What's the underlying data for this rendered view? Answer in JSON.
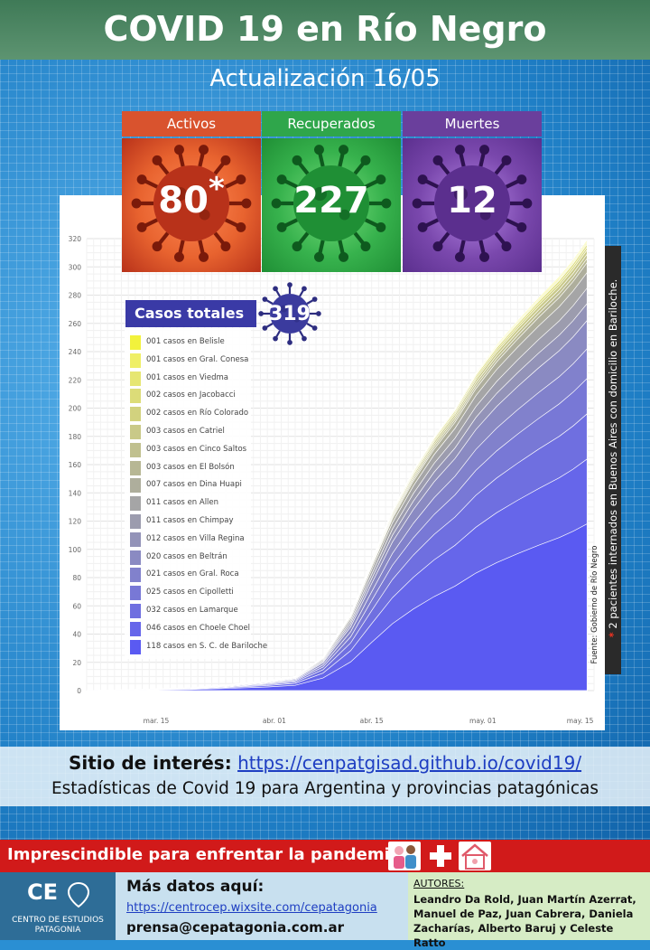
{
  "header": {
    "title": "COVID 19 en Río Negro",
    "subtitle": "Actualización  16/05"
  },
  "stats": [
    {
      "label": "Activos",
      "value": "80",
      "marker": "*",
      "color_header": "#d9532e",
      "color_box": "#e8632f",
      "icon": "virus-icon"
    },
    {
      "label": "Recuperados",
      "value": "227",
      "marker": "",
      "color_header": "#2fa64b",
      "color_box": "#37b24d",
      "icon": "virus-icon"
    },
    {
      "label": "Muertes",
      "value": "12",
      "marker": "",
      "color_header": "#6a3f9c",
      "color_box": "#7a48ad",
      "icon": "virus-icon"
    }
  ],
  "casos_totales": {
    "label": "Casos totales",
    "value": "319"
  },
  "chart_data": {
    "type": "area",
    "x_labels": [
      "mar. 15",
      "abr. 01",
      "abr. 15",
      "may. 01",
      "may. 15"
    ],
    "x_dates": [
      "2020-03-15",
      "2020-04-01",
      "2020-04-15",
      "2020-05-01",
      "2020-05-15"
    ],
    "ylim": [
      0,
      320
    ],
    "y_ticks": [
      0,
      20,
      40,
      60,
      80,
      100,
      120,
      140,
      160,
      180,
      200,
      220,
      240,
      260,
      280,
      300,
      320
    ],
    "grid": true,
    "total_curve": [
      {
        "date": "2020-03-05",
        "value": 0
      },
      {
        "date": "2020-03-14",
        "value": 1
      },
      {
        "date": "2020-03-20",
        "value": 2
      },
      {
        "date": "2020-03-25",
        "value": 4
      },
      {
        "date": "2020-03-31",
        "value": 7
      },
      {
        "date": "2020-04-04",
        "value": 10
      },
      {
        "date": "2020-04-08",
        "value": 24
      },
      {
        "date": "2020-04-12",
        "value": 55
      },
      {
        "date": "2020-04-15",
        "value": 92
      },
      {
        "date": "2020-04-18",
        "value": 128
      },
      {
        "date": "2020-04-21",
        "value": 156
      },
      {
        "date": "2020-04-24",
        "value": 180
      },
      {
        "date": "2020-04-27",
        "value": 200
      },
      {
        "date": "2020-04-30",
        "value": 225
      },
      {
        "date": "2020-05-03",
        "value": 245
      },
      {
        "date": "2020-05-06",
        "value": 262
      },
      {
        "date": "2020-05-09",
        "value": 278
      },
      {
        "date": "2020-05-12",
        "value": 293
      },
      {
        "date": "2020-05-14",
        "value": 305
      },
      {
        "date": "2020-05-16",
        "value": 319
      }
    ],
    "series": [
      {
        "name": "001 casos en Belisle",
        "value": 1,
        "color": "#f2f23c"
      },
      {
        "name": "001 casos en Gral. Conesa",
        "value": 1,
        "color": "#efef66"
      },
      {
        "name": "001 casos en Viedma",
        "value": 1,
        "color": "#e6e672"
      },
      {
        "name": "002 casos en Jacobacci",
        "value": 2,
        "color": "#dcdc78"
      },
      {
        "name": "002 casos en Río Colorado",
        "value": 2,
        "color": "#d2d27e"
      },
      {
        "name": "003 casos en Catriel",
        "value": 3,
        "color": "#c9c988"
      },
      {
        "name": "003 casos en Cinco Saltos",
        "value": 3,
        "color": "#c0c08e"
      },
      {
        "name": "003 casos en El Bolsón",
        "value": 3,
        "color": "#b7b794"
      },
      {
        "name": "007 casos en Dina Huapi",
        "value": 7,
        "color": "#aeae9c"
      },
      {
        "name": "011 casos en Allen",
        "value": 11,
        "color": "#a5a5a6"
      },
      {
        "name": "011 casos en Chimpay",
        "value": 11,
        "color": "#9c9cae"
      },
      {
        "name": "012 casos en Villa Regina",
        "value": 12,
        "color": "#9393b8"
      },
      {
        "name": "020 casos en Beltrán",
        "value": 20,
        "color": "#8a8ac2"
      },
      {
        "name": "021 casos en Gral. Roca",
        "value": 21,
        "color": "#8181cc"
      },
      {
        "name": "025 casos en Cipolletti",
        "value": 25,
        "color": "#7878d6"
      },
      {
        "name": "032 casos en Lamarque",
        "value": 32,
        "color": "#6f6fe0"
      },
      {
        "name": "046 casos en Choele Choel",
        "value": 46,
        "color": "#6666ea"
      },
      {
        "name": "118 casos en S. C. de Bariloche",
        "value": 118,
        "color": "#5a5af2"
      }
    ]
  },
  "side_note": {
    "marker": "*",
    "text": "2 pacientes internados en Buenos Aires con domicilio en Bariloche."
  },
  "source": "Fuente: Gobierno de Río Negro",
  "sitio": {
    "label": "Sitio de interés:",
    "url": "https://cenpatgisad.github.io/covid19/",
    "desc": "Estadísticas de Covid 19 para Argentina y provincias patagónicas"
  },
  "banner": {
    "text": "Imprescindible para enfrentar la pandemia:",
    "icons": [
      "family-icon",
      "medical-cross-icon",
      "house-icon"
    ]
  },
  "footer": {
    "logo": "CE",
    "org": "CENTRO DE ESTUDIOS PATAGONIA",
    "mas_datos": "Más datos aquí:",
    "link": "https://centrocep.wixsite.com/cepatagonia",
    "email": "prensa@cepatagonia.com.ar",
    "autores_label": "AUTORES:",
    "autores": "Leandro Da Rold, Juan Martín Azerrat, Manuel de Paz, Juan Cabrera, Daniela Zacharías, Alberto Baruj y Celeste Ratto"
  }
}
